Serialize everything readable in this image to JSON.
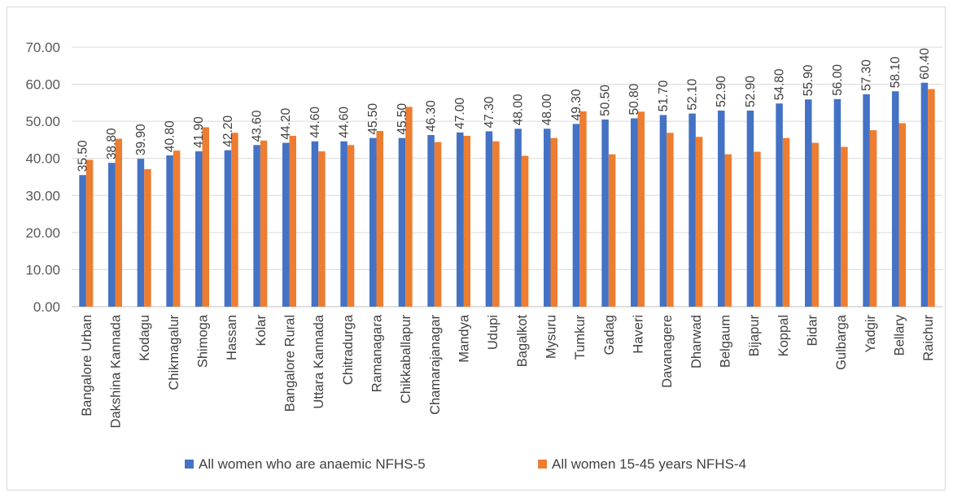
{
  "chart_data": {
    "type": "bar",
    "title": "",
    "xlabel": "",
    "ylabel": "",
    "ylim": [
      0,
      70
    ],
    "yticks": [
      "0.00",
      "10.00",
      "20.00",
      "30.00",
      "40.00",
      "50.00",
      "60.00",
      "70.00"
    ],
    "grid": true,
    "legend_position": "bottom",
    "categories": [
      "Bangalore Urban",
      "Dakshina Kannada",
      "Kodagu",
      "Chikmagalur",
      "Shimoga",
      "Hassan",
      "Kolar",
      "Bangalore Rural",
      "Uttara Kannada",
      "Chitradurga",
      "Ramanagara",
      "Chikkaballapur",
      "Chamarajanagar",
      "Mandya",
      "Udupi",
      "Bagalkot",
      "Mysuru",
      "Tumkur",
      "Gadag",
      "Haveri",
      "Davanagere",
      "Dharwad",
      "Belgaum",
      "Bijapur",
      "Koppal",
      "Bidar",
      "Gulbarga",
      "Yadgir",
      "Bellary",
      "Raichur"
    ],
    "series": [
      {
        "name": "All women  who are anaemic NFHS-5",
        "color": "#4472c4",
        "values": [
          35.5,
          38.8,
          39.9,
          40.8,
          41.9,
          42.2,
          43.6,
          44.2,
          44.6,
          44.6,
          45.5,
          45.5,
          46.3,
          47.0,
          47.3,
          48.0,
          48.0,
          49.3,
          50.5,
          50.8,
          51.7,
          52.1,
          52.9,
          52.9,
          54.8,
          55.9,
          56.0,
          57.3,
          58.1,
          60.4
        ],
        "labels": [
          "35.50",
          "38.80",
          "39.90",
          "40.80",
          "41.90",
          "42.20",
          "43.60",
          "44.20",
          "44.60",
          "44.60",
          "45.50",
          "45.50",
          "46.30",
          "47.00",
          "47.30",
          "48.00",
          "48.00",
          "49.30",
          "50.50",
          "50.80",
          "51.70",
          "52.10",
          "52.90",
          "52.90",
          "54.80",
          "55.90",
          "56.00",
          "57.30",
          "58.10",
          "60.40"
        ]
      },
      {
        "name": "All women 15-45 years NFHS-4",
        "color": "#ed7d31",
        "values": [
          39.6,
          45.3,
          37.1,
          42.1,
          48.4,
          46.9,
          44.8,
          46.1,
          41.9,
          43.6,
          47.4,
          53.9,
          44.4,
          46.1,
          44.6,
          40.7,
          45.5,
          52.7,
          41.1,
          52.6,
          46.9,
          45.8,
          41.1,
          41.8,
          45.5,
          44.2,
          43.1,
          47.6,
          49.5,
          58.7
        ]
      }
    ]
  }
}
